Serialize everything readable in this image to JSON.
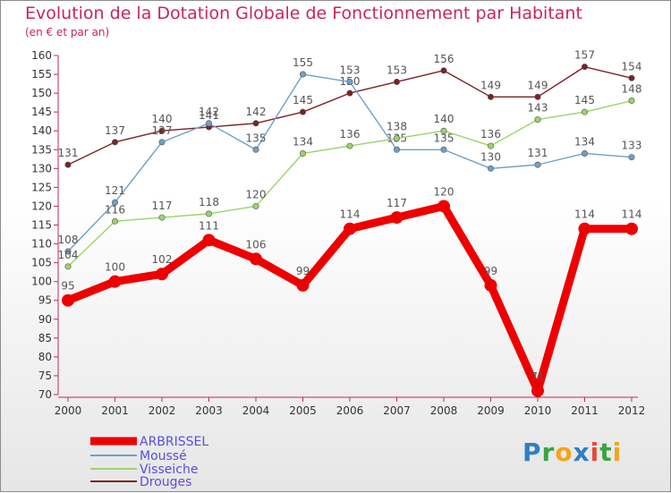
{
  "title": "Evolution de la Dotation Globale de Fonctionnement par Habitant",
  "subtitle": "(en € et par an)",
  "logo": "Proxiti",
  "chart_data": {
    "type": "line",
    "title": "Evolution de la Dotation Globale de Fonctionnement par Habitant",
    "subtitle": "(en € et par an)",
    "xlabel": "",
    "ylabel": "",
    "x": [
      "2000",
      "2001",
      "2002",
      "2003",
      "2004",
      "2005",
      "2006",
      "2007",
      "2008",
      "2009",
      "2010",
      "2011",
      "2012"
    ],
    "ylim": [
      70,
      160
    ],
    "ytick_step": 5,
    "grid": false,
    "legend_position": "bottom-left",
    "series": [
      {
        "name": "Drouges",
        "color": "#7b2226",
        "values": [
          131,
          137,
          140,
          141,
          142,
          145,
          150,
          153,
          156,
          149,
          149,
          157,
          154
        ]
      },
      {
        "name": "Mousse",
        "color": "#6fa0c7",
        "values": [
          108,
          121,
          137,
          142,
          135,
          155,
          153,
          135,
          135,
          130,
          131,
          134,
          133
        ]
      },
      {
        "name": "Visseiche",
        "color": "#9cd36a",
        "values": [
          104,
          116,
          117,
          118,
          120,
          134,
          136,
          138,
          140,
          136,
          143,
          145,
          148
        ]
      },
      {
        "name": "ARBRISSEL",
        "color": "#ee0000",
        "values": [
          95,
          100,
          102,
          111,
          106,
          99,
          114,
          117,
          120,
          99,
          71,
          114,
          114
        ]
      }
    ],
    "legend": [
      "ARBRISSEL",
      "Moussé",
      "Visseiche",
      "Drouges"
    ]
  }
}
